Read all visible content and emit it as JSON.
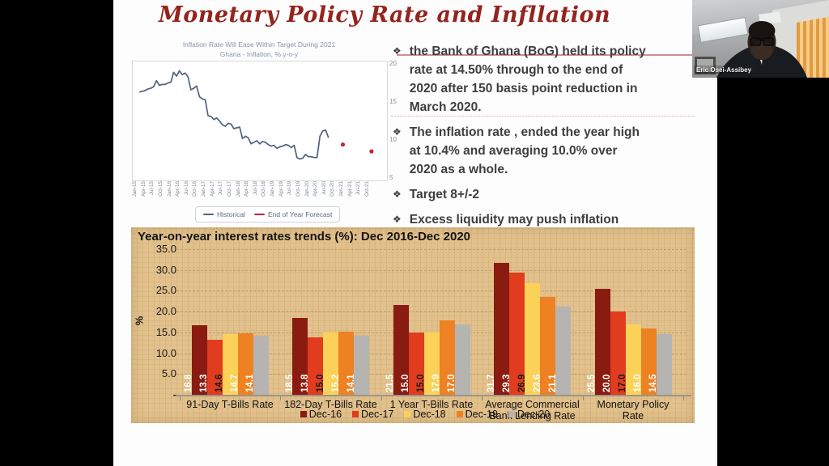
{
  "slide": {
    "title": "Monetary Policy Rate and Infllation",
    "title_color": "#93241e"
  },
  "bullets": {
    "items": [
      {
        "marker": "❖",
        "text": "the Bank of Ghana (BoG) held its policy\nrate at 14.50% through to the end of\n2020 after 150 basis point reduction in\nMarch 2020."
      },
      {
        "marker": "❖",
        "text": "The inflation rate , ended the year high\nat 10.4% and averaging 10.0% over\n2020 as a whole."
      },
      {
        "marker": "❖",
        "text": "Target 8+/-2"
      },
      {
        "marker": "❖",
        "text": "Excess liquidity may push inflation"
      }
    ]
  },
  "webcam": {
    "participant_name": "Eric Osei-Assibey"
  },
  "chart_data": [
    {
      "type": "line",
      "title": "Inflation Rate Will Ease Within Target During 2021",
      "subtitle": "Ghana - Inflation, % y-o-y",
      "xlabel": "",
      "ylabel": "",
      "ylim": [
        5,
        20
      ],
      "y_ticks": [
        20,
        15,
        10,
        5
      ],
      "grid": false,
      "legend_position": "bottom",
      "x_tick_labels": [
        "Jan-15",
        "Apr-15",
        "Jul-15",
        "Oct-15",
        "Jan-16",
        "Apr-16",
        "Jul-16",
        "Oct-16",
        "Jan-17",
        "Apr-17",
        "Jul-17",
        "Oct-17",
        "Jan-18",
        "Apr-18",
        "Jul-18",
        "Oct-18",
        "Jan-19",
        "Apr-19",
        "Jul-19",
        "Oct-19",
        "Jan-20",
        "Apr-20",
        "Jul-20",
        "Oct-20",
        "Jan-21",
        "Apr-21",
        "Jul-21",
        "Oct-21"
      ],
      "months_per_tick": 3,
      "axis_total_months": 84,
      "series": [
        {
          "name": "Historical",
          "style": "line",
          "color": "#50607f",
          "start_month_label": "Jan-15",
          "monthly_values": [
            16.4,
            16.5,
            16.6,
            16.8,
            16.9,
            17.1,
            17.9,
            17.3,
            17.4,
            17.4,
            17.6,
            17.7,
            19.0,
            18.5,
            19.2,
            18.7,
            18.9,
            18.4,
            16.7,
            16.9,
            17.2,
            15.8,
            15.5,
            15.4,
            13.3,
            13.2,
            12.8,
            13.0,
            12.6,
            12.1,
            11.9,
            12.3,
            12.2,
            11.6,
            11.7,
            11.8,
            10.3,
            10.6,
            10.4,
            9.6,
            9.8,
            10.0,
            9.6,
            9.9,
            9.8,
            9.5,
            9.3,
            9.4,
            9.0,
            9.2,
            9.3,
            9.5,
            9.4,
            9.1,
            9.4,
            7.8,
            7.6,
            7.7,
            8.2,
            7.9,
            7.9,
            7.8,
            7.8,
            10.6,
            11.3,
            11.4,
            10.4
          ]
        },
        {
          "name": "End of Year Forecast",
          "style": "points",
          "color": "#c2243b",
          "points": [
            {
              "month_index": 71,
              "value": 9.5
            },
            {
              "month_index": 81,
              "value": 8.6
            }
          ]
        }
      ]
    },
    {
      "type": "bar",
      "title": "Year-on-year interest rates trends (%): Dec 2016-Dec 2020",
      "ylabel": "%",
      "ylim": [
        0,
        35
      ],
      "grid": true,
      "legend_position": "bottom-overlap",
      "background": "#e2c18c",
      "y_tick_labels": [
        "35.0",
        "30.0",
        "25.0",
        "20.0",
        "15.0",
        "10.0",
        "5.0",
        "-"
      ],
      "y_tick_values": [
        35,
        30,
        25,
        20,
        15,
        10,
        5,
        0
      ],
      "categories": [
        "91-Day T-Bills Rate",
        "182-Day T-Bills Rate",
        "1 Year T-Bills Rate",
        "Average Commercial\nBank Lending Rate",
        "Monetary Policy\nRate"
      ],
      "series": [
        {
          "name": "Dec-16",
          "color": "#8a1b10",
          "label_color": "#ffffff",
          "values": [
            16.8,
            18.5,
            21.5,
            31.7,
            25.5
          ]
        },
        {
          "name": "Dec-17",
          "color": "#e13c1e",
          "label_color": "#ffffff",
          "values": [
            13.3,
            13.8,
            15.0,
            29.3,
            20.0
          ]
        },
        {
          "name": "Dec-18",
          "color": "#fbd158",
          "label_color": "#1a1a1a",
          "values": [
            14.6,
            15.0,
            15.0,
            26.9,
            17.0
          ]
        },
        {
          "name": "Dec-19",
          "color": "#ee8122",
          "label_color": "#ffffff",
          "values": [
            14.7,
            15.2,
            17.9,
            23.6,
            16.0
          ]
        },
        {
          "name": "Dec-20",
          "color": "#b5b4b1",
          "label_color": "#ffffff",
          "values": [
            14.1,
            14.1,
            17.0,
            21.1,
            14.5
          ]
        }
      ]
    }
  ]
}
